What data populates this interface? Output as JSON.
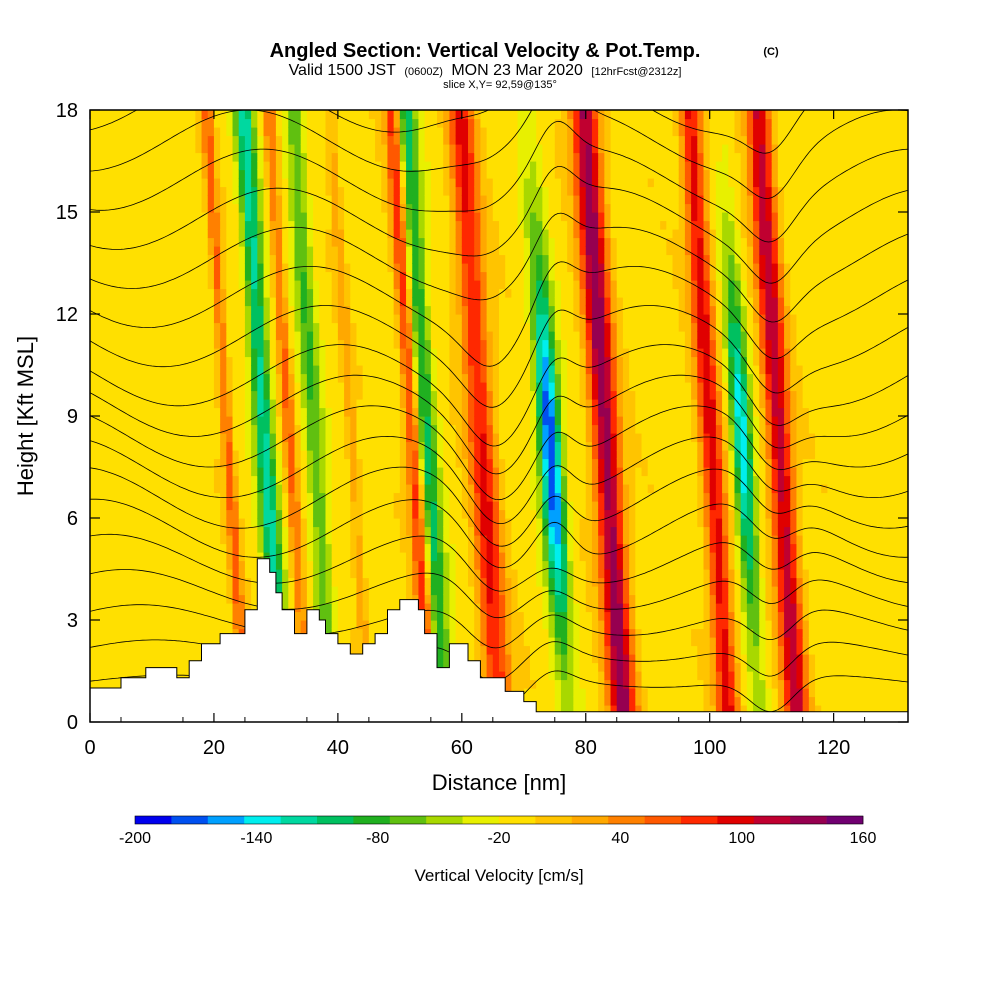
{
  "chart_data": {
    "type": "heatmap",
    "title": "Angled Section: Vertical Velocity & Pot.Temp.",
    "title_units": "(C)",
    "subtitle_line1": {
      "valid_label": "Valid 1500 JST",
      "utc": "(0600Z)",
      "date": "MON 23 Mar 2020",
      "forecast": "[12hrFcst@2312z]"
    },
    "subtitle_line2": "slice X,Y= 92,59@135°",
    "xlabel": "Distance [nm]",
    "ylabel": "Height [Kft MSL]",
    "xlim": [
      0,
      132
    ],
    "ylim": [
      0,
      18
    ],
    "x_ticks": [
      "0",
      "20",
      "40",
      "60",
      "80",
      "100",
      "120"
    ],
    "x_tick_values": [
      0,
      20,
      40,
      60,
      80,
      100,
      120
    ],
    "y_ticks": [
      "0",
      "3",
      "6",
      "9",
      "12",
      "15",
      "18"
    ],
    "y_tick_values": [
      0,
      3,
      6,
      9,
      12,
      15,
      18
    ],
    "colorbar": {
      "label": "Vertical Velocity [cm/s]",
      "min": -200,
      "max": 160,
      "step": 20,
      "tick_labels": [
        "-200",
        "-140",
        "-80",
        "-20",
        "40",
        "100",
        "160"
      ],
      "tick_values": [
        -200,
        -140,
        -80,
        -20,
        40,
        100,
        160
      ],
      "colors": [
        "#0000ee",
        "#0050f0",
        "#00a0ff",
        "#00eeee",
        "#00d8a0",
        "#00c060",
        "#20b020",
        "#60c010",
        "#a8d800",
        "#e8f000",
        "#ffe000",
        "#ffc400",
        "#ffa800",
        "#ff8000",
        "#ff5800",
        "#ff2800",
        "#e00000",
        "#c00030",
        "#960050",
        "#700070"
      ]
    },
    "updrafts": [
      {
        "x": 23,
        "w": 0.9,
        "amp": 75
      },
      {
        "x": 33,
        "w": 1.0,
        "amp": 70
      },
      {
        "x": 43,
        "w": 0.9,
        "amp": 40
      },
      {
        "x": 53,
        "w": 1.3,
        "amp": 115
      },
      {
        "x": 64,
        "w": 2.2,
        "amp": 110
      },
      {
        "x": 84,
        "w": 2.2,
        "amp": 160
      },
      {
        "x": 101,
        "w": 1.8,
        "amp": 120
      },
      {
        "x": 112,
        "w": 2.0,
        "amp": 140
      }
    ],
    "downdrafts": [
      {
        "x": 29,
        "w": 1.6,
        "amp": -120
      },
      {
        "x": 37,
        "w": 1.6,
        "amp": -70
      },
      {
        "x": 55,
        "w": 1.8,
        "amp": -100
      },
      {
        "x": 75,
        "w": 1.8,
        "amp": -200
      },
      {
        "x": 106,
        "w": 1.6,
        "amp": -150
      }
    ],
    "terrain": [
      [
        0,
        1
      ],
      [
        5,
        1
      ],
      [
        5,
        1.3
      ],
      [
        9,
        1.3
      ],
      [
        9,
        1.6
      ],
      [
        14,
        1.6
      ],
      [
        14,
        1.3
      ],
      [
        16,
        1.3
      ],
      [
        16,
        1.8
      ],
      [
        18,
        1.8
      ],
      [
        18,
        2.3
      ],
      [
        21,
        2.3
      ],
      [
        21,
        2.6
      ],
      [
        25,
        2.6
      ],
      [
        25,
        3.3
      ],
      [
        27,
        3.3
      ],
      [
        27,
        4.8
      ],
      [
        29,
        4.8
      ],
      [
        29,
        4.4
      ],
      [
        30,
        4.4
      ],
      [
        30,
        3.8
      ],
      [
        31,
        3.8
      ],
      [
        31,
        3.3
      ],
      [
        33,
        3.3
      ],
      [
        33,
        2.6
      ],
      [
        35,
        2.6
      ],
      [
        35,
        3.3
      ],
      [
        37,
        3.3
      ],
      [
        37,
        3.0
      ],
      [
        38,
        3.0
      ],
      [
        38,
        2.6
      ],
      [
        40,
        2.6
      ],
      [
        40,
        2.3
      ],
      [
        42,
        2.3
      ],
      [
        42,
        2.0
      ],
      [
        44,
        2.0
      ],
      [
        44,
        2.3
      ],
      [
        46,
        2.3
      ],
      [
        46,
        2.6
      ],
      [
        48,
        2.6
      ],
      [
        48,
        3.3
      ],
      [
        50,
        3.3
      ],
      [
        50,
        3.6
      ],
      [
        53,
        3.6
      ],
      [
        53,
        3.3
      ],
      [
        54,
        3.3
      ],
      [
        54,
        2.6
      ],
      [
        56,
        2.6
      ],
      [
        56,
        1.6
      ],
      [
        58,
        1.6
      ],
      [
        58,
        2.3
      ],
      [
        61,
        2.3
      ],
      [
        61,
        1.8
      ],
      [
        63,
        1.8
      ],
      [
        63,
        1.3
      ],
      [
        67,
        1.3
      ],
      [
        67,
        0.9
      ],
      [
        70,
        0.9
      ],
      [
        70,
        0.6
      ],
      [
        72,
        0.6
      ],
      [
        72,
        0.3
      ],
      [
        132,
        0.3
      ]
    ]
  }
}
